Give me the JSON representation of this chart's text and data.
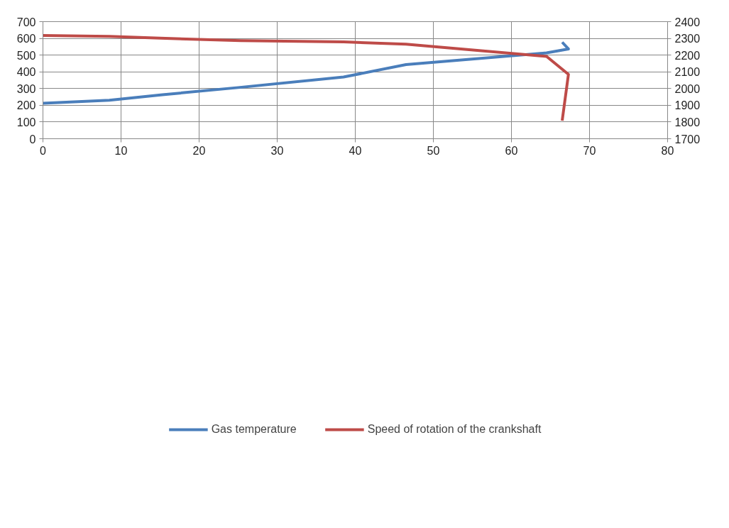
{
  "chart_data": {
    "type": "line",
    "xlim": [
      0,
      80
    ],
    "xticks": [
      0,
      10,
      20,
      30,
      40,
      50,
      60,
      70,
      80
    ],
    "ylim": [
      0,
      700
    ],
    "yticks": [
      0,
      100,
      200,
      300,
      400,
      500,
      600,
      700
    ],
    "y2lim": [
      1700,
      2400
    ],
    "y2ticks": [
      1700,
      1800,
      1900,
      2000,
      2100,
      2200,
      2300,
      2400
    ],
    "grid": true,
    "legend": "bottom",
    "marker": "none",
    "line_style": "solid",
    "series": [
      {
        "name": "Gas temperature",
        "color": "#4a7ebb",
        "x": [
          0,
          8.5,
          15.3,
          25,
          38.5,
          46.5,
          64.5,
          67.3,
          66.5
        ],
        "values": [
          212,
          230,
          263,
          306,
          369,
          443,
          513,
          537,
          577
        ]
      },
      {
        "name": "Speed of rotation of the crankshaft",
        "color": "#be4b48",
        "axis": "y2",
        "x": [
          0,
          8.5,
          15,
          25.3,
          38.5,
          46.5,
          64.5,
          67.3,
          66.5
        ],
        "values": [
          2317,
          2312,
          2301,
          2287,
          2279,
          2265,
          2192,
          2085,
          1808
        ]
      }
    ]
  }
}
